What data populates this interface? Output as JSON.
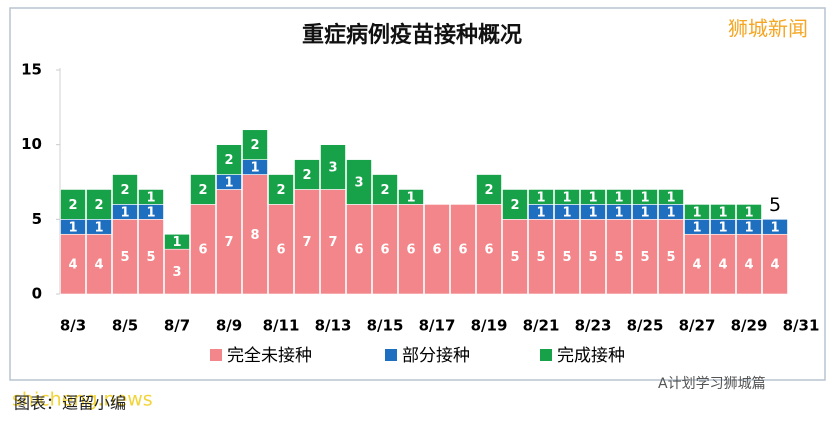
{
  "chart_data": {
    "type": "stacked_bar",
    "title": "重症病例疫苗接种概况",
    "categories": [
      "8/3",
      null,
      "8/5",
      null,
      "8/7",
      null,
      "8/9",
      null,
      "8/11",
      null,
      "8/13",
      null,
      "8/15",
      null,
      "8/17",
      null,
      "8/19",
      null,
      "8/21",
      null,
      "8/23",
      null,
      "8/25",
      null,
      "8/27",
      null,
      "8/29",
      null,
      "8/31"
    ],
    "series": [
      {
        "name": "完全未接种",
        "color": "#f2868a",
        "values": [
          4,
          4,
          5,
          5,
          3,
          6,
          7,
          8,
          6,
          7,
          7,
          6,
          6,
          6,
          6,
          6,
          6,
          5,
          5,
          5,
          5,
          5,
          5,
          5,
          4,
          4,
          4,
          4,
          null
        ]
      },
      {
        "name": "部分接种",
        "color": "#1f6fc0",
        "values": [
          1,
          1,
          1,
          1,
          null,
          null,
          1,
          1,
          null,
          null,
          null,
          null,
          null,
          null,
          null,
          null,
          null,
          null,
          1,
          1,
          1,
          1,
          1,
          1,
          1,
          1,
          1,
          1,
          null
        ]
      },
      {
        "name": "完成接种",
        "color": "#17a24a",
        "values": [
          2,
          2,
          2,
          1,
          1,
          2,
          2,
          2,
          2,
          2,
          3,
          3,
          2,
          1,
          null,
          null,
          2,
          2,
          1,
          1,
          1,
          1,
          1,
          1,
          1,
          1,
          1,
          null,
          null
        ]
      }
    ],
    "total_labels": [
      null,
      null,
      null,
      null,
      null,
      null,
      null,
      null,
      null,
      null,
      null,
      null,
      null,
      null,
      null,
      null,
      null,
      null,
      null,
      null,
      null,
      null,
      null,
      null,
      null,
      null,
      null,
      5,
      null
    ],
    "ylim": [
      0,
      15
    ],
    "yticks": [
      0,
      5,
      10,
      15
    ],
    "grid": false,
    "legend": "bottom"
  },
  "watermarks": {
    "top": "狮城新闻",
    "site": "shicheng.news",
    "credit": "图表：逗留小编",
    "wechat": "A计划学习狮城篇"
  }
}
